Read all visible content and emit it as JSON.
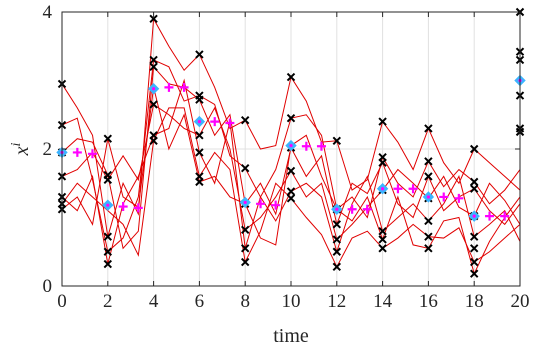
{
  "chart_data": {
    "type": "scatter",
    "title": "",
    "xlabel": "time",
    "ylabel": "x^i",
    "xlim": [
      0,
      20
    ],
    "ylim": [
      0,
      4
    ],
    "xticks": [
      "0",
      "2",
      "4",
      "6",
      "8",
      "10",
      "12",
      "14",
      "16",
      "18",
      "20"
    ],
    "yticks": [
      "0",
      "2",
      "4"
    ],
    "grid": true,
    "colors": {
      "trajectories": "#e00000",
      "samples": "#000000",
      "estimate_diamond": "#3cb4ff",
      "prediction_plus": "#ff00ff",
      "grid": "#e0e0e0",
      "axis": "#262626"
    },
    "sample_times": [
      0,
      2,
      4,
      6,
      8,
      10,
      12,
      14,
      16,
      18,
      20
    ],
    "samples": [
      [
        2.95,
        2.35,
        1.95,
        1.6,
        1.3,
        1.2,
        1.12
      ],
      [
        2.15,
        1.62,
        1.55,
        0.72,
        0.5,
        0.32
      ],
      [
        3.9,
        3.3,
        3.2,
        2.65,
        2.2,
        2.12
      ],
      [
        3.38,
        2.78,
        2.72,
        2.2,
        1.95,
        1.6,
        1.52
      ],
      [
        2.42,
        1.72,
        1.2,
        0.82,
        0.55,
        0.35
      ],
      [
        3.05,
        2.45,
        2.02,
        1.68,
        1.38,
        1.28
      ],
      [
        2.12,
        1.12,
        0.9,
        0.68,
        0.5,
        0.28
      ],
      [
        2.4,
        1.88,
        1.8,
        1.4,
        0.8,
        0.68,
        0.55
      ],
      [
        2.3,
        1.82,
        1.6,
        1.28,
        0.95,
        0.72,
        0.55
      ],
      [
        2.0,
        1.52,
        1.42,
        1.02,
        0.72,
        0.55,
        0.35,
        0.18
      ],
      [
        4.0,
        3.42,
        3.3,
        2.78,
        2.3,
        2.25
      ]
    ],
    "estimates": [
      {
        "x": 0,
        "y": 1.95
      },
      {
        "x": 2,
        "y": 1.18
      },
      {
        "x": 4,
        "y": 2.88
      },
      {
        "x": 6,
        "y": 2.4
      },
      {
        "x": 8,
        "y": 1.22
      },
      {
        "x": 10,
        "y": 2.05
      },
      {
        "x": 12,
        "y": 1.12
      },
      {
        "x": 14,
        "y": 1.42
      },
      {
        "x": 16,
        "y": 1.3
      },
      {
        "x": 18,
        "y": 1.02
      },
      {
        "x": 20,
        "y": 3.0
      }
    ],
    "predictions": [
      {
        "x": 0.67,
        "y": 1.95
      },
      {
        "x": 1.33,
        "y": 1.93
      },
      {
        "x": 2.67,
        "y": 1.16
      },
      {
        "x": 3.33,
        "y": 1.14
      },
      {
        "x": 4.67,
        "y": 2.9
      },
      {
        "x": 5.33,
        "y": 2.9
      },
      {
        "x": 6.67,
        "y": 2.4
      },
      {
        "x": 7.33,
        "y": 2.38
      },
      {
        "x": 8.67,
        "y": 1.2
      },
      {
        "x": 9.33,
        "y": 1.18
      },
      {
        "x": 10.67,
        "y": 2.04
      },
      {
        "x": 11.33,
        "y": 2.04
      },
      {
        "x": 12.67,
        "y": 1.12
      },
      {
        "x": 13.33,
        "y": 1.12
      },
      {
        "x": 14.67,
        "y": 1.42
      },
      {
        "x": 15.33,
        "y": 1.42
      },
      {
        "x": 16.67,
        "y": 1.3
      },
      {
        "x": 17.33,
        "y": 1.28
      },
      {
        "x": 18.67,
        "y": 1.02
      },
      {
        "x": 19.33,
        "y": 1.02
      }
    ],
    "trajectories": [
      [
        2.95,
        2.6,
        2.2,
        0.72,
        1.5,
        1.05,
        3.9,
        3.5,
        3.15,
        3.38,
        2.9,
        2.3,
        2.42,
        2.0,
        2.05,
        3.05,
        2.7,
        2.1,
        2.12,
        1.4,
        1.55,
        2.4,
        2.1,
        1.7,
        2.3,
        1.8,
        1.5,
        2.0,
        1.8,
        1.6,
        1.4
      ],
      [
        2.35,
        2.45,
        1.55,
        0.5,
        0.7,
        1.3,
        3.3,
        3.2,
        2.7,
        2.78,
        2.65,
        1.9,
        1.72,
        1.3,
        1.7,
        2.45,
        2.5,
        2.2,
        1.12,
        1.3,
        1.0,
        1.88,
        1.5,
        1.3,
        1.82,
        1.45,
        1.7,
        1.52,
        1.2,
        1.4,
        1.7
      ],
      [
        1.95,
        2.15,
        2.1,
        1.62,
        0.55,
        0.8,
        3.2,
        2.95,
        2.9,
        2.72,
        2.2,
        2.5,
        1.2,
        1.5,
        1.05,
        2.02,
        1.6,
        1.9,
        0.9,
        1.5,
        1.35,
        1.8,
        1.2,
        1.0,
        1.6,
        1.1,
        1.3,
        1.42,
        1.1,
        0.9,
        1.2
      ],
      [
        1.6,
        1.7,
        1.95,
        1.55,
        1.9,
        1.55,
        2.65,
        2.5,
        2.3,
        2.2,
        2.6,
        2.0,
        0.82,
        1.0,
        1.3,
        1.68,
        1.3,
        1.5,
        0.68,
        0.9,
        1.15,
        1.4,
        1.7,
        1.5,
        1.28,
        1.6,
        1.15,
        1.02,
        1.5,
        1.25,
        0.9
      ],
      [
        1.3,
        1.1,
        1.6,
        0.32,
        1.2,
        1.6,
        2.2,
        2.3,
        3.0,
        1.95,
        1.5,
        2.4,
        0.55,
        1.3,
        0.95,
        1.38,
        1.5,
        1.3,
        0.5,
        1.2,
        1.6,
        0.8,
        1.0,
        1.2,
        0.95,
        1.2,
        1.6,
        0.72,
        0.9,
        1.1,
        0.65
      ],
      [
        1.2,
        1.5,
        1.3,
        1.1,
        0.9,
        0.45,
        2.12,
        2.6,
        2.6,
        1.6,
        1.95,
        1.7,
        0.35,
        0.8,
        1.5,
        1.28,
        1.0,
        0.75,
        0.28,
        0.7,
        0.8,
        0.55,
        0.7,
        0.9,
        0.72,
        0.7,
        0.85,
        0.35,
        0.5,
        0.7,
        0.9
      ],
      [
        1.12,
        1.3,
        0.9,
        2.15,
        1.3,
        1.15,
        2.9,
        2.0,
        2.5,
        1.52,
        1.6,
        1.3,
        1.2,
        0.7,
        0.6,
        2.05,
        2.2,
        1.6,
        1.12,
        0.95,
        1.3,
        0.68,
        1.3,
        0.6,
        0.55,
        0.95,
        1.0,
        0.18,
        0.65,
        1.0,
        1.3
      ]
    ]
  }
}
